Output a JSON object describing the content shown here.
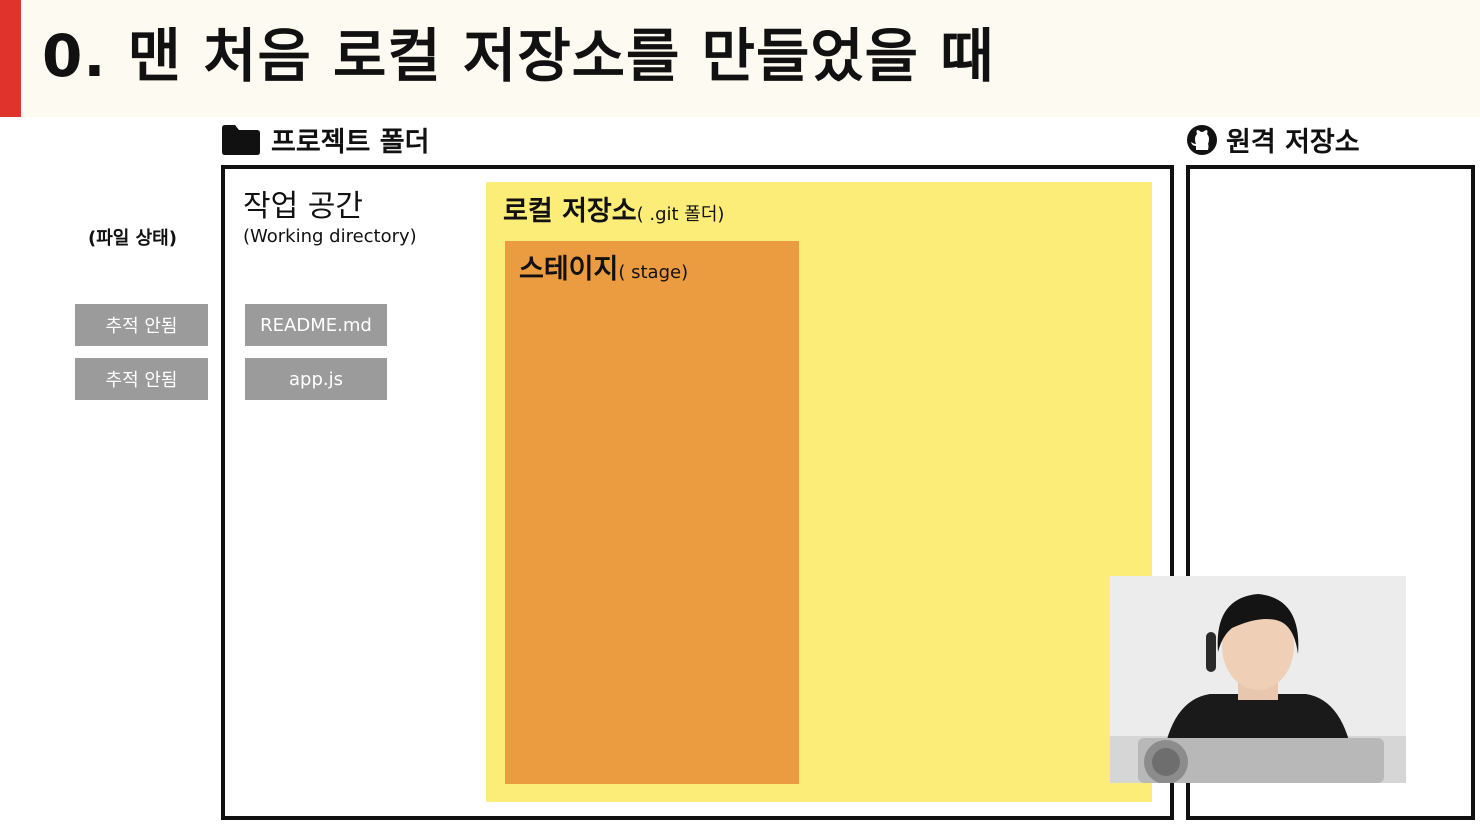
{
  "slide": {
    "title": "0. 맨 처음 로컬 저장소를 만들었을 때",
    "accent_color": "#e0332c"
  },
  "project_folder": {
    "icon": "folder-icon",
    "label": "프로젝트 폴더"
  },
  "remote_repo": {
    "icon": "github-icon",
    "label": "원격 저장소"
  },
  "file_status": {
    "header": "(파일 상태)",
    "items": [
      "추적 안됨",
      "추적 안됨"
    ]
  },
  "workspace": {
    "title": "작업 공간",
    "subtitle": "(Working directory)",
    "files": [
      "README.md",
      "app.js"
    ]
  },
  "local_repo": {
    "title": "로컬 저장소",
    "subtitle": "( .git 폴더)",
    "color": "#fced79"
  },
  "stage": {
    "title": "스테이지",
    "subtitle": "( stage)",
    "color": "#eb9c41"
  },
  "tag_color": "#9b9b9b"
}
